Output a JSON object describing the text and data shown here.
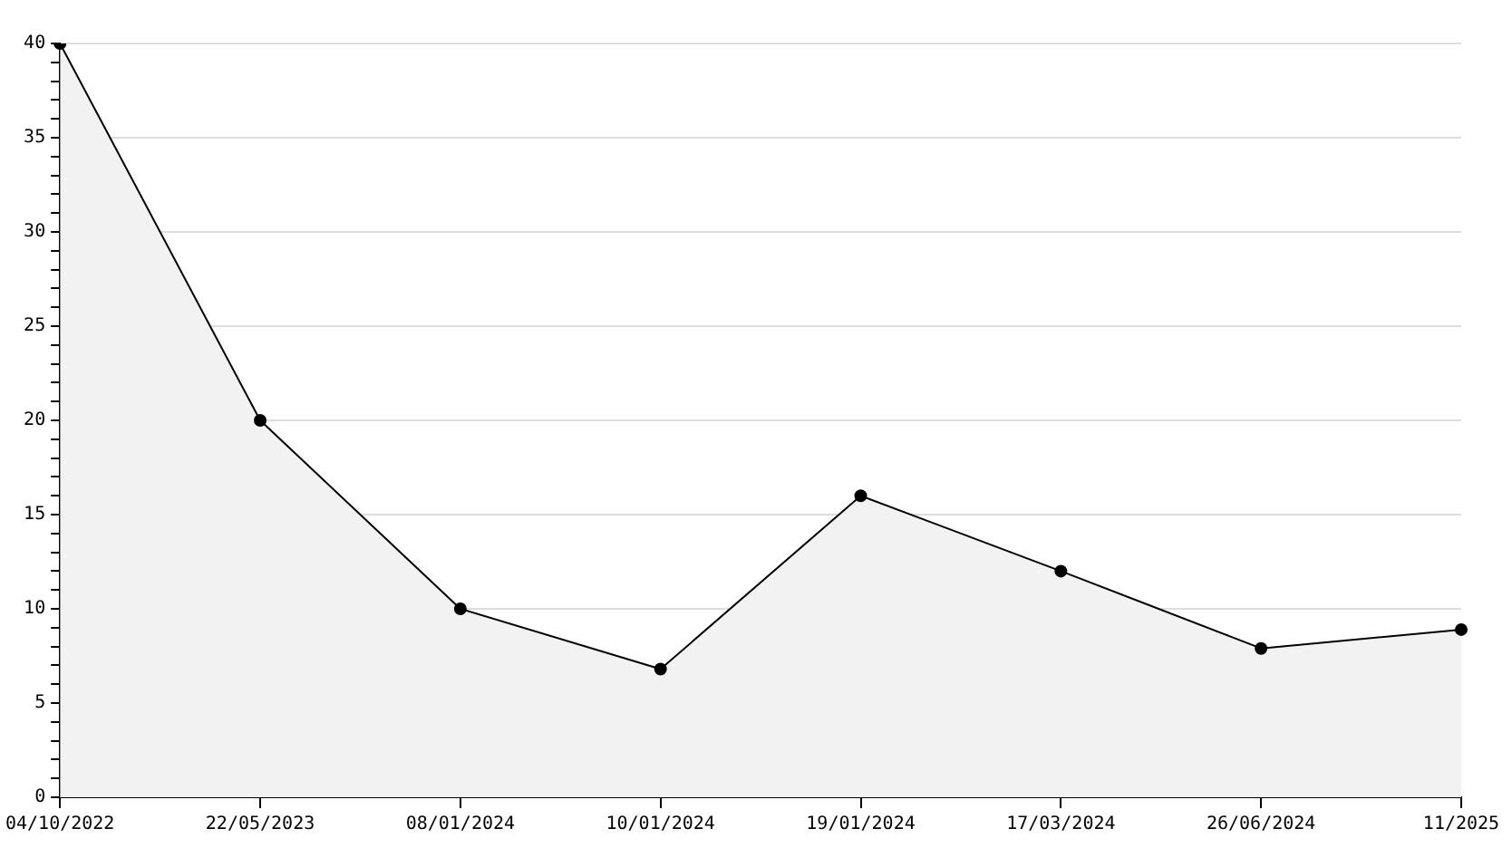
{
  "chart_data": {
    "type": "area",
    "categories": [
      "04/10/2022",
      "22/05/2023",
      "08/01/2024",
      "10/01/2024",
      "19/01/2024",
      "17/03/2024",
      "26/06/2024",
      "11/2025"
    ],
    "series": [
      {
        "color": "#000000",
        "values": [
          40,
          20,
          10,
          6.8,
          16,
          12,
          7.9,
          8.9
        ]
      }
    ],
    "ylim": [
      0,
      40
    ],
    "yticks": [
      0,
      {
        "value": 1,
        "label": null
      },
      {
        "value": 2,
        "label": null
      },
      {
        "value": 3,
        "label": null
      },
      {
        "value": 4,
        "label": null
      },
      5,
      {
        "value": 6,
        "label": null
      },
      {
        "value": 7,
        "label": null
      },
      {
        "value": 8,
        "label": null
      },
      {
        "value": 9,
        "label": null
      },
      10,
      {
        "value": 11,
        "label": null
      },
      {
        "value": 12,
        "label": null
      },
      {
        "value": 13,
        "label": null
      },
      {
        "value": 14,
        "label": null
      },
      15,
      {
        "value": 16,
        "label": null
      },
      {
        "value": 17,
        "label": null
      },
      {
        "value": 18,
        "label": null
      },
      {
        "value": 19,
        "label": null
      },
      20,
      {
        "value": 21,
        "label": null
      },
      {
        "value": 22,
        "label": null
      },
      {
        "value": 23,
        "label": null
      },
      {
        "value": 24,
        "label": null
      },
      25,
      {
        "value": 26,
        "label": null
      },
      {
        "value": 27,
        "label": null
      },
      {
        "value": 28,
        "label": null
      },
      {
        "value": 29,
        "label": null
      },
      30,
      {
        "value": 31,
        "label": null
      },
      {
        "value": 32,
        "label": null
      },
      {
        "value": 33,
        "label": null
      },
      {
        "value": 34,
        "label": null
      },
      35,
      {
        "value": 36,
        "label": null
      },
      {
        "value": 37,
        "label": null
      },
      {
        "value": 38,
        "label": null
      },
      {
        "value": 39,
        "label": null
      },
      40
    ],
    "grid": "y",
    "marker": "circle",
    "line_style": "solid"
  }
}
